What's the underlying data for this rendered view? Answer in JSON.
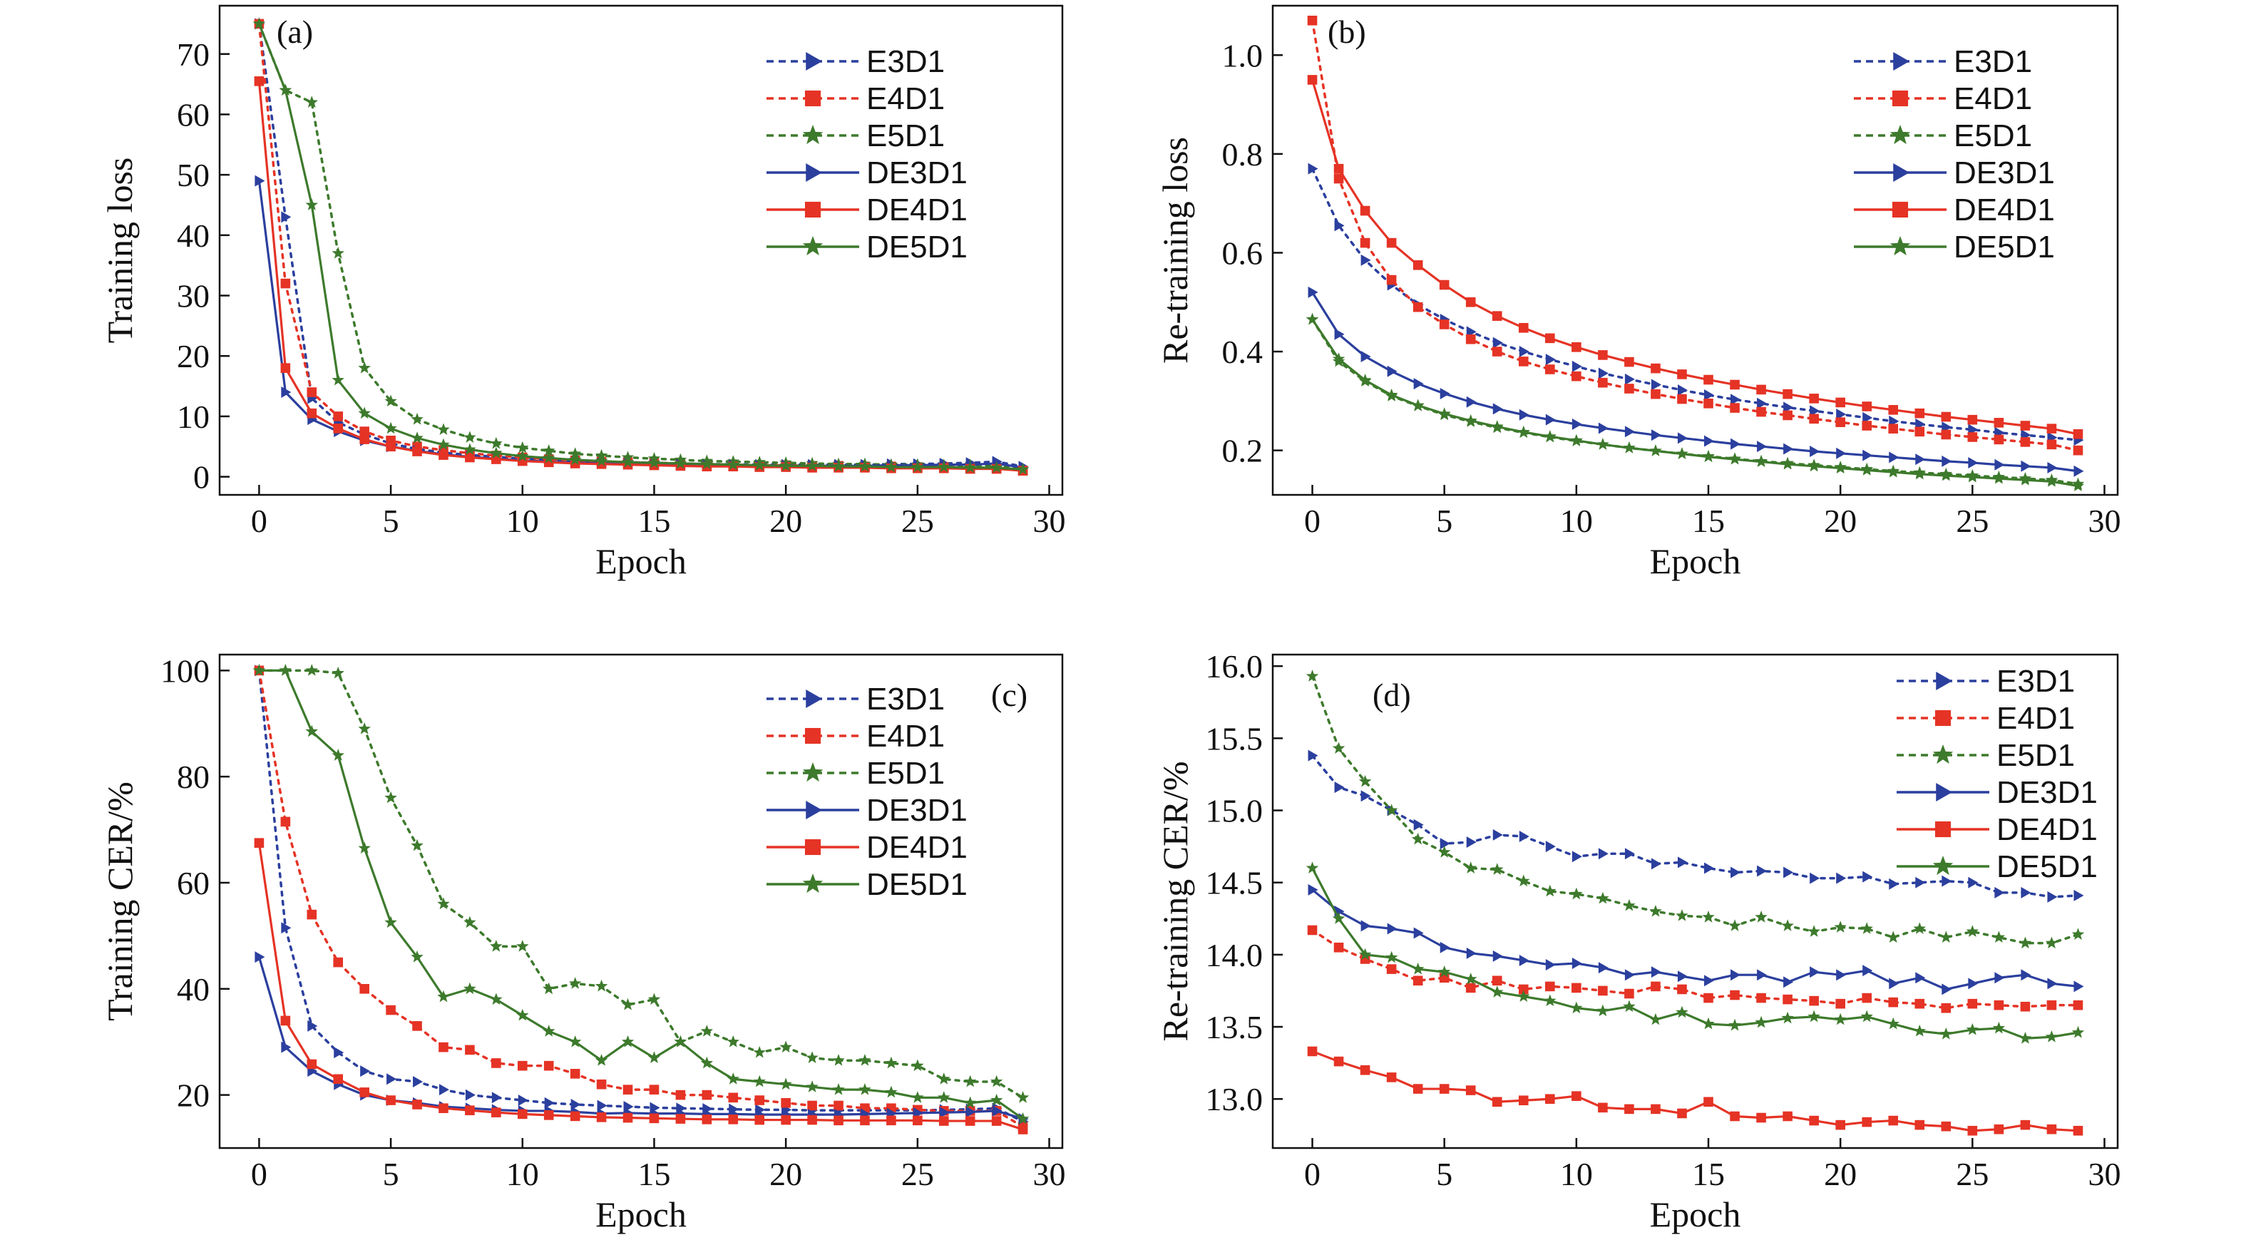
{
  "colors": {
    "E3D1": "#2b3f9e",
    "E4D1": "#e53325",
    "E5D1": "#3d7a2c",
    "DE3D1": "#2b3f9e",
    "DE4D1": "#e53325",
    "DE5D1": "#3d7a2c"
  },
  "legend_series": [
    {
      "name": "E3D1",
      "marker": "triangle-right",
      "dash": "dotted"
    },
    {
      "name": "E4D1",
      "marker": "square",
      "dash": "dotted"
    },
    {
      "name": "E5D1",
      "marker": "star",
      "dash": "dotted"
    },
    {
      "name": "DE3D1",
      "marker": "triangle-right",
      "dash": "solid"
    },
    {
      "name": "DE4D1",
      "marker": "square",
      "dash": "solid"
    },
    {
      "name": "DE5D1",
      "marker": "star",
      "dash": "solid"
    }
  ],
  "chart_data": [
    {
      "type": "line",
      "panel_label": "(a)",
      "xlabel": "Epoch",
      "ylabel": "Training loss",
      "xlim": [
        -1.5,
        30.5
      ],
      "ylim": [
        -3,
        78
      ],
      "xticks": [
        0,
        5,
        10,
        15,
        20,
        25,
        30
      ],
      "yticks": [
        0,
        10,
        20,
        30,
        40,
        50,
        60,
        70
      ],
      "ytick_labels": [
        "0",
        "10",
        "20",
        "30",
        "40",
        "50",
        "60",
        "70"
      ],
      "legend_position": "top-right",
      "x": [
        0,
        1,
        2,
        3,
        4,
        5,
        6,
        7,
        8,
        9,
        10,
        11,
        12,
        13,
        14,
        15,
        16,
        17,
        18,
        19,
        20,
        21,
        22,
        23,
        24,
        25,
        26,
        27,
        28,
        29
      ],
      "series": [
        {
          "name": "E3D1",
          "values": [
            75,
            43,
            13,
            9,
            7,
            5.5,
            4.6,
            4,
            3.6,
            3.3,
            3,
            2.8,
            2.6,
            2.5,
            2.4,
            2.3,
            2.2,
            2.1,
            2.05,
            2,
            2,
            2,
            2,
            2,
            2.1,
            2.1,
            2.2,
            2.3,
            2.5,
            1.7
          ]
        },
        {
          "name": "E4D1",
          "values": [
            75,
            32,
            14,
            10,
            7.5,
            6,
            5,
            4.4,
            3.9,
            3.5,
            3.2,
            2.9,
            2.7,
            2.5,
            2.4,
            2.3,
            2.2,
            2.1,
            2,
            1.9,
            1.9,
            1.8,
            1.8,
            1.7,
            1.7,
            1.6,
            1.6,
            1.5,
            1.5,
            1
          ]
        },
        {
          "name": "E5D1",
          "values": [
            75,
            64,
            62,
            37,
            18,
            12.5,
            9.5,
            7.8,
            6.5,
            5.5,
            4.8,
            4.3,
            3.8,
            3.5,
            3.2,
            3,
            2.8,
            2.6,
            2.5,
            2.4,
            2.3,
            2.2,
            2.1,
            2.1,
            2,
            2,
            1.9,
            1.9,
            1.8,
            1.2
          ]
        },
        {
          "name": "DE3D1",
          "values": [
            49,
            14,
            9.5,
            7.5,
            6,
            5,
            4.3,
            3.7,
            3.3,
            3,
            2.7,
            2.5,
            2.3,
            2.2,
            2.1,
            2,
            2,
            1.9,
            1.9,
            1.8,
            1.8,
            1.8,
            1.8,
            1.8,
            1.9,
            1.9,
            2,
            2,
            2.2,
            1.5
          ]
        },
        {
          "name": "DE4D1",
          "values": [
            65.5,
            18,
            10.5,
            8,
            6.2,
            5,
            4.2,
            3.6,
            3.2,
            2.9,
            2.6,
            2.4,
            2.2,
            2.1,
            2,
            1.9,
            1.8,
            1.7,
            1.7,
            1.6,
            1.6,
            1.5,
            1.5,
            1.5,
            1.4,
            1.4,
            1.4,
            1.3,
            1.3,
            1
          ]
        },
        {
          "name": "DE5D1",
          "values": [
            75,
            64,
            45,
            16,
            10.5,
            8,
            6.4,
            5.3,
            4.5,
            3.9,
            3.4,
            3.1,
            2.8,
            2.6,
            2.4,
            2.3,
            2.2,
            2.1,
            2,
            1.9,
            1.8,
            1.8,
            1.7,
            1.7,
            1.6,
            1.6,
            1.6,
            1.5,
            1.5,
            1.2
          ]
        }
      ]
    },
    {
      "type": "line",
      "panel_label": "(b)",
      "xlabel": "Epoch",
      "ylabel": "Re-training loss",
      "xlim": [
        -1.5,
        30.5
      ],
      "ylim": [
        0.11,
        1.1
      ],
      "xticks": [
        0,
        5,
        10,
        15,
        20,
        25,
        30
      ],
      "yticks": [
        0.2,
        0.4,
        0.6,
        0.8,
        1.0
      ],
      "ytick_labels": [
        "0.2",
        "0.4",
        "0.6",
        "0.8",
        "1.0"
      ],
      "legend_position": "top-right",
      "x": [
        0,
        1,
        2,
        3,
        4,
        5,
        6,
        7,
        8,
        9,
        10,
        11,
        12,
        13,
        14,
        15,
        16,
        17,
        18,
        19,
        20,
        21,
        22,
        23,
        24,
        25,
        26,
        27,
        28,
        29
      ],
      "series": [
        {
          "name": "E3D1",
          "values": [
            0.77,
            0.655,
            0.585,
            0.535,
            0.495,
            0.465,
            0.44,
            0.418,
            0.4,
            0.384,
            0.37,
            0.356,
            0.344,
            0.333,
            0.322,
            0.312,
            0.303,
            0.295,
            0.287,
            0.28,
            0.273,
            0.266,
            0.259,
            0.253,
            0.247,
            0.242,
            0.236,
            0.231,
            0.226,
            0.221
          ]
        },
        {
          "name": "E4D1",
          "values": [
            1.07,
            0.75,
            0.62,
            0.545,
            0.49,
            0.455,
            0.425,
            0.4,
            0.38,
            0.364,
            0.35,
            0.337,
            0.325,
            0.314,
            0.304,
            0.295,
            0.286,
            0.278,
            0.271,
            0.264,
            0.257,
            0.25,
            0.244,
            0.238,
            0.232,
            0.227,
            0.222,
            0.217,
            0.212,
            0.2
          ]
        },
        {
          "name": "E5D1",
          "values": [
            0.465,
            0.38,
            0.34,
            0.31,
            0.29,
            0.272,
            0.258,
            0.246,
            0.236,
            0.227,
            0.219,
            0.212,
            0.205,
            0.199,
            0.193,
            0.188,
            0.183,
            0.178,
            0.174,
            0.17,
            0.166,
            0.162,
            0.158,
            0.155,
            0.152,
            0.149,
            0.146,
            0.143,
            0.14,
            0.132
          ]
        },
        {
          "name": "DE3D1",
          "values": [
            0.52,
            0.435,
            0.39,
            0.36,
            0.335,
            0.315,
            0.298,
            0.284,
            0.272,
            0.262,
            0.253,
            0.245,
            0.238,
            0.231,
            0.225,
            0.219,
            0.213,
            0.208,
            0.203,
            0.198,
            0.194,
            0.19,
            0.186,
            0.182,
            0.178,
            0.175,
            0.171,
            0.168,
            0.165,
            0.158
          ]
        },
        {
          "name": "DE4D1",
          "values": [
            0.95,
            0.77,
            0.685,
            0.62,
            0.575,
            0.535,
            0.5,
            0.472,
            0.448,
            0.427,
            0.409,
            0.393,
            0.379,
            0.366,
            0.354,
            0.343,
            0.333,
            0.323,
            0.314,
            0.305,
            0.297,
            0.289,
            0.282,
            0.275,
            0.268,
            0.262,
            0.256,
            0.25,
            0.244,
            0.233
          ]
        },
        {
          "name": "DE5D1",
          "values": [
            0.465,
            0.385,
            0.342,
            0.312,
            0.291,
            0.274,
            0.26,
            0.248,
            0.237,
            0.228,
            0.22,
            0.212,
            0.205,
            0.199,
            0.193,
            0.187,
            0.182,
            0.177,
            0.172,
            0.168,
            0.164,
            0.16,
            0.156,
            0.152,
            0.149,
            0.146,
            0.143,
            0.14,
            0.137,
            0.128
          ]
        }
      ]
    },
    {
      "type": "line",
      "panel_label": "(c)",
      "xlabel": "Epoch",
      "ylabel": "Training CER/%",
      "xlim": [
        -1.5,
        30.5
      ],
      "ylim": [
        10,
        103
      ],
      "xticks": [
        0,
        5,
        10,
        15,
        20,
        25,
        30
      ],
      "yticks": [
        20,
        40,
        60,
        80,
        100
      ],
      "ytick_labels": [
        "20",
        "40",
        "60",
        "80",
        "100"
      ],
      "legend_position": "top-right",
      "x": [
        0,
        1,
        2,
        3,
        4,
        5,
        6,
        7,
        8,
        9,
        10,
        11,
        12,
        13,
        14,
        15,
        16,
        17,
        18,
        19,
        20,
        21,
        22,
        23,
        24,
        25,
        26,
        27,
        28,
        29
      ],
      "series": [
        {
          "name": "E3D1",
          "values": [
            100,
            51.5,
            33,
            28,
            24.5,
            23,
            22.5,
            21,
            20,
            19.5,
            19,
            18.5,
            18.2,
            18,
            17.8,
            17.6,
            17.5,
            17.4,
            17.3,
            17.2,
            17.2,
            17.1,
            17.1,
            17.1,
            17.1,
            17.1,
            17.2,
            17.3,
            17.5,
            15
          ]
        },
        {
          "name": "E4D1",
          "values": [
            100,
            71.5,
            54,
            45,
            40,
            36,
            33,
            29,
            28.5,
            26,
            25.5,
            25.5,
            24,
            22,
            21,
            21,
            20,
            20,
            19.5,
            19,
            18.5,
            18,
            18,
            17.5,
            17.5,
            17.2,
            17,
            17,
            17,
            14
          ]
        },
        {
          "name": "E5D1",
          "values": [
            100,
            100,
            100,
            99.5,
            89,
            76,
            67,
            56,
            52.5,
            48,
            48,
            40,
            41,
            40.5,
            37,
            38,
            30,
            32,
            30,
            28,
            29,
            27,
            26.5,
            26.5,
            26,
            25.5,
            23,
            22.5,
            22.5,
            19.5
          ]
        },
        {
          "name": "DE3D1",
          "values": [
            46,
            29,
            24.5,
            22,
            20,
            19,
            18.5,
            17.8,
            17.5,
            17.2,
            17,
            17,
            16.8,
            16.5,
            16.6,
            16.5,
            16.5,
            16.4,
            16.4,
            16.3,
            16.3,
            16.3,
            16.3,
            16.4,
            16.5,
            16.6,
            16.7,
            16.8,
            17,
            15.5
          ]
        },
        {
          "name": "DE4D1",
          "values": [
            67.5,
            34,
            25.8,
            23,
            20.5,
            19,
            18.2,
            17.5,
            17.1,
            16.7,
            16.4,
            16.2,
            16,
            15.8,
            15.7,
            15.6,
            15.5,
            15.4,
            15.4,
            15.3,
            15.3,
            15.3,
            15.2,
            15.2,
            15.2,
            15.2,
            15.1,
            15.1,
            15.1,
            13.5
          ]
        },
        {
          "name": "DE5D1",
          "values": [
            100,
            100,
            88.5,
            84,
            66.5,
            52.5,
            46,
            38.5,
            40,
            38,
            35,
            32,
            30,
            26.5,
            30,
            27,
            30,
            26,
            23,
            22.5,
            22,
            21.5,
            21,
            21,
            20.5,
            19.5,
            19.5,
            18.5,
            19,
            15.5
          ]
        }
      ]
    },
    {
      "type": "line",
      "panel_label": "(d)",
      "xlabel": "Epoch",
      "ylabel": "Re-training CER/%",
      "xlim": [
        -1.5,
        30.5
      ],
      "ylim": [
        12.66,
        16.08
      ],
      "xticks": [
        0,
        5,
        10,
        15,
        20,
        25,
        30
      ],
      "yticks": [
        13.0,
        13.5,
        14.0,
        14.5,
        15.0,
        15.5,
        16.0
      ],
      "ytick_labels": [
        "13.0",
        "13.5",
        "14.0",
        "14.5",
        "15.0",
        "15.5",
        "16.0"
      ],
      "legend_position": "top-right",
      "x": [
        0,
        1,
        2,
        3,
        4,
        5,
        6,
        7,
        8,
        9,
        10,
        11,
        12,
        13,
        14,
        15,
        16,
        17,
        18,
        19,
        20,
        21,
        22,
        23,
        24,
        25,
        26,
        27,
        28,
        29
      ],
      "series": [
        {
          "name": "E3D1",
          "values": [
            15.38,
            15.16,
            15.1,
            15.0,
            14.9,
            14.77,
            14.78,
            14.83,
            14.82,
            14.75,
            14.68,
            14.7,
            14.7,
            14.63,
            14.64,
            14.6,
            14.57,
            14.58,
            14.57,
            14.53,
            14.53,
            14.54,
            14.49,
            14.5,
            14.51,
            14.5,
            14.43,
            14.43,
            14.4,
            14.41
          ]
        },
        {
          "name": "E4D1",
          "values": [
            14.17,
            14.05,
            13.97,
            13.9,
            13.82,
            13.84,
            13.77,
            13.82,
            13.76,
            13.78,
            13.77,
            13.75,
            13.73,
            13.78,
            13.76,
            13.7,
            13.72,
            13.7,
            13.69,
            13.68,
            13.66,
            13.7,
            13.67,
            13.66,
            13.63,
            13.66,
            13.65,
            13.64,
            13.65,
            13.65
          ]
        },
        {
          "name": "E5D1",
          "values": [
            15.93,
            15.43,
            15.2,
            15.0,
            14.8,
            14.71,
            14.6,
            14.59,
            14.51,
            14.44,
            14.42,
            14.39,
            14.34,
            14.3,
            14.27,
            14.26,
            14.2,
            14.26,
            14.2,
            14.16,
            14.19,
            14.18,
            14.12,
            14.18,
            14.12,
            14.16,
            14.12,
            14.08,
            14.08,
            14.14
          ]
        },
        {
          "name": "DE3D1",
          "values": [
            14.45,
            14.3,
            14.2,
            14.18,
            14.15,
            14.05,
            14.01,
            13.99,
            13.96,
            13.93,
            13.94,
            13.91,
            13.86,
            13.88,
            13.85,
            13.82,
            13.86,
            13.86,
            13.81,
            13.88,
            13.86,
            13.89,
            13.8,
            13.84,
            13.76,
            13.8,
            13.84,
            13.86,
            13.8,
            13.78
          ]
        },
        {
          "name": "DE4D1",
          "values": [
            13.33,
            13.26,
            13.2,
            13.15,
            13.07,
            13.07,
            13.06,
            12.98,
            12.99,
            13.0,
            13.02,
            12.94,
            12.93,
            12.93,
            12.9,
            12.98,
            12.88,
            12.87,
            12.88,
            12.85,
            12.82,
            12.84,
            12.85,
            12.82,
            12.81,
            12.78,
            12.79,
            12.82,
            12.79,
            12.78
          ]
        },
        {
          "name": "DE5D1",
          "values": [
            14.6,
            14.25,
            14.0,
            13.98,
            13.9,
            13.88,
            13.83,
            13.74,
            13.71,
            13.68,
            13.63,
            13.61,
            13.64,
            13.55,
            13.6,
            13.52,
            13.51,
            13.53,
            13.56,
            13.57,
            13.55,
            13.57,
            13.52,
            13.47,
            13.45,
            13.48,
            13.49,
            13.42,
            13.43,
            13.46
          ]
        }
      ]
    }
  ]
}
